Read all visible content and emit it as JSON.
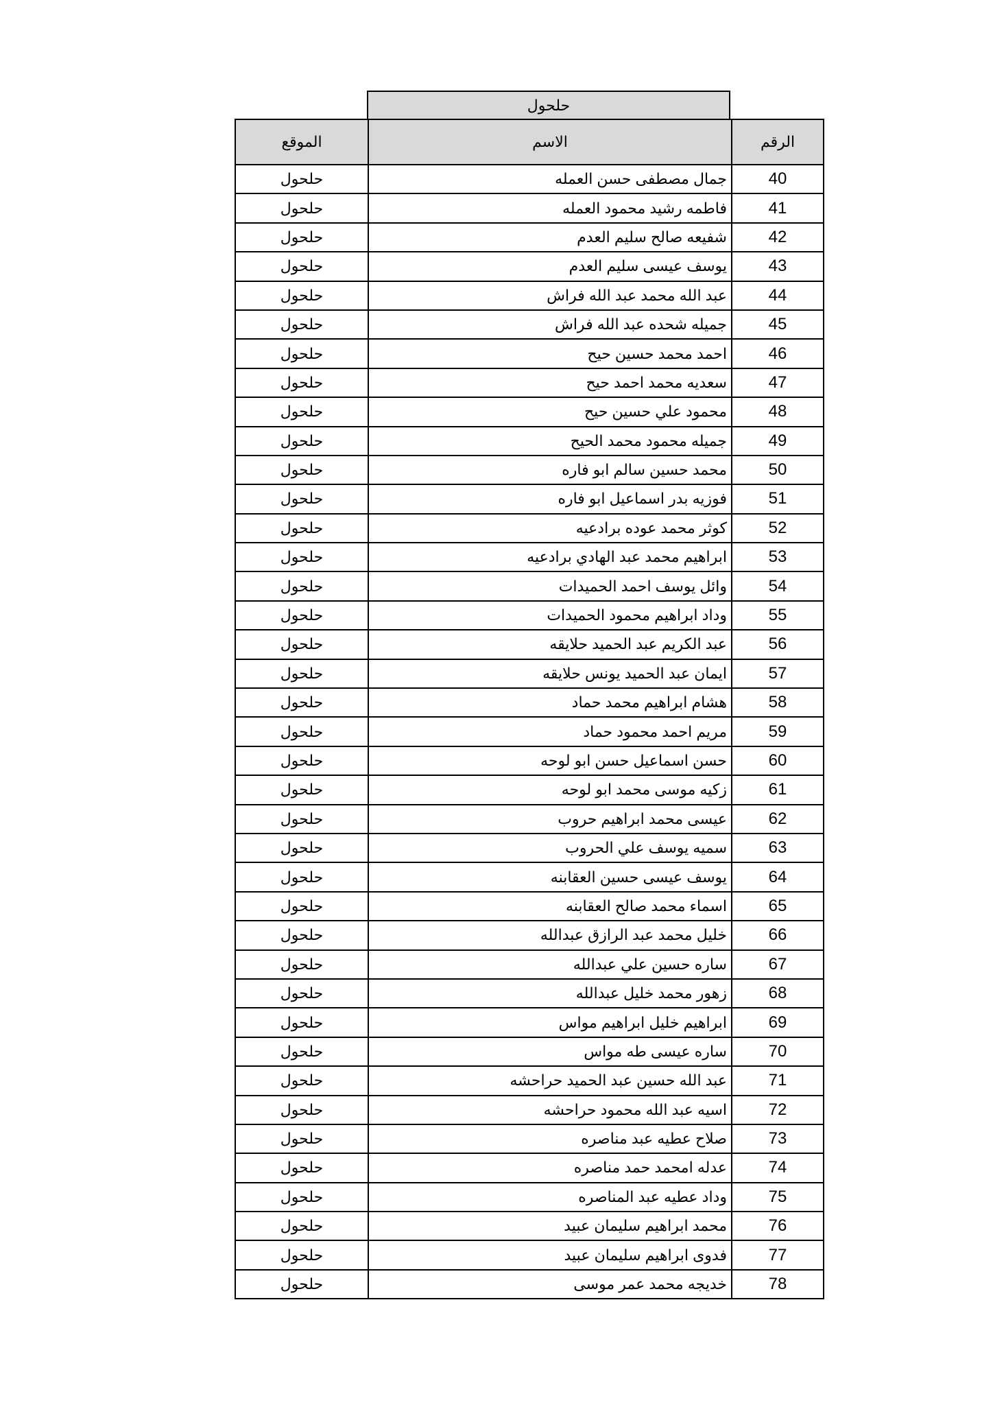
{
  "banner": "حلحول",
  "headers": {
    "number": "الرقم",
    "name": "الاسم",
    "location": "الموقع"
  },
  "rows": [
    {
      "num": "40",
      "name": "جمال مصطفى حسن العمله",
      "loc": "حلحول"
    },
    {
      "num": "41",
      "name": "فاطمه رشيد محمود العمله",
      "loc": "حلحول"
    },
    {
      "num": "42",
      "name": "شفيعه صالح سليم العدم",
      "loc": "حلحول"
    },
    {
      "num": "43",
      "name": "يوسف عيسى سليم العدم",
      "loc": "حلحول"
    },
    {
      "num": "44",
      "name": "عبد الله محمد عبد الله فراش",
      "loc": "حلحول"
    },
    {
      "num": "45",
      "name": "جميله شحده عبد الله فراش",
      "loc": "حلحول"
    },
    {
      "num": "46",
      "name": "احمد محمد حسين حيح",
      "loc": "حلحول"
    },
    {
      "num": "47",
      "name": "سعديه محمد احمد حيح",
      "loc": "حلحول"
    },
    {
      "num": "48",
      "name": "محمود علي حسين حيح",
      "loc": "حلحول"
    },
    {
      "num": "49",
      "name": "جميله محمود محمد الحيح",
      "loc": "حلحول"
    },
    {
      "num": "50",
      "name": "محمد حسين سالم ابو فاره",
      "loc": "حلحول"
    },
    {
      "num": "51",
      "name": "فوزيه بدر اسماعيل ابو فاره",
      "loc": "حلحول"
    },
    {
      "num": "52",
      "name": "كوثر محمد عوده برادعيه",
      "loc": "حلحول"
    },
    {
      "num": "53",
      "name": "ابراهيم محمد عبد الهادي برادعيه",
      "loc": "حلحول"
    },
    {
      "num": "54",
      "name": "وائل يوسف احمد الحميدات",
      "loc": "حلحول"
    },
    {
      "num": "55",
      "name": "وداد ابراهيم محمود الحميدات",
      "loc": "حلحول"
    },
    {
      "num": "56",
      "name": "عبد الكريم عبد الحميد حلايقه",
      "loc": "حلحول"
    },
    {
      "num": "57",
      "name": "ايمان عبد الحميد يونس حلايقه",
      "loc": "حلحول"
    },
    {
      "num": "58",
      "name": "هشام ابراهيم محمد حماد",
      "loc": "حلحول"
    },
    {
      "num": "59",
      "name": "مريم احمد محمود حماد",
      "loc": "حلحول"
    },
    {
      "num": "60",
      "name": "حسن اسماعيل حسن ابو لوحه",
      "loc": "حلحول"
    },
    {
      "num": "61",
      "name": "زكيه موسى محمد ابو لوحه",
      "loc": "حلحول"
    },
    {
      "num": "62",
      "name": "عيسى محمد ابراهيم حروب",
      "loc": "حلحول"
    },
    {
      "num": "63",
      "name": "سميه يوسف علي الحروب",
      "loc": "حلحول"
    },
    {
      "num": "64",
      "name": "يوسف عيسى حسين العقابنه",
      "loc": "حلحول"
    },
    {
      "num": "65",
      "name": "اسماء محمد صالح العقابنه",
      "loc": "حلحول"
    },
    {
      "num": "66",
      "name": "خليل محمد عبد الرازق عبدالله",
      "loc": "حلحول"
    },
    {
      "num": "67",
      "name": "ساره حسين علي عبدالله",
      "loc": "حلحول"
    },
    {
      "num": "68",
      "name": "زهور محمد خليل عبدالله",
      "loc": "حلحول"
    },
    {
      "num": "69",
      "name": "ابراهيم خليل ابراهيم مواس",
      "loc": "حلحول"
    },
    {
      "num": "70",
      "name": "ساره عيسى طه مواس",
      "loc": "حلحول"
    },
    {
      "num": "71",
      "name": "عبد الله حسين عبد الحميد حراحشه",
      "loc": "حلحول"
    },
    {
      "num": "72",
      "name": "اسيه عبد الله محمود حراحشه",
      "loc": "حلحول"
    },
    {
      "num": "73",
      "name": "صلاح عطيه عبد مناصره",
      "loc": "حلحول"
    },
    {
      "num": "74",
      "name": "عدله امحمد حمد مناصره",
      "loc": "حلحول"
    },
    {
      "num": "75",
      "name": "وداد عطيه عبد المناصره",
      "loc": "حلحول"
    },
    {
      "num": "76",
      "name": "محمد ابراهيم سليمان عبيد",
      "loc": "حلحول"
    },
    {
      "num": "77",
      "name": "فدوى ابراهيم سليمان عبيد",
      "loc": "حلحول"
    },
    {
      "num": "78",
      "name": "خديجه محمد عمر موسى",
      "loc": "حلحول"
    }
  ]
}
